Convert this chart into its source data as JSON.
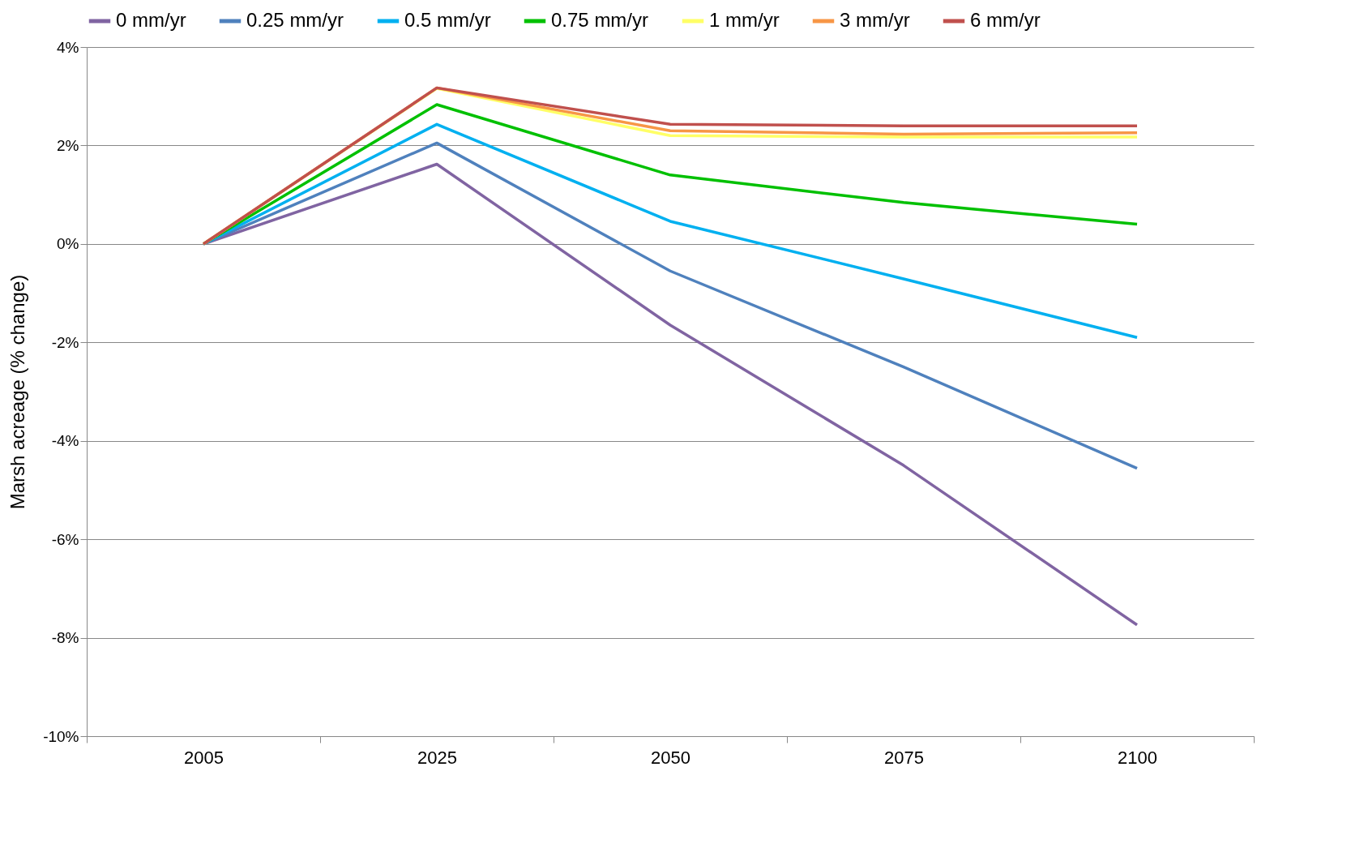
{
  "chart_data": {
    "type": "line",
    "ylabel": "Marsh acreage (% change)",
    "categories": [
      "2005",
      "2025",
      "2050",
      "2075",
      "2100"
    ],
    "series": [
      {
        "name": "0 mm/yr",
        "color": "#8064a2",
        "values": [
          0,
          1.62,
          -1.65,
          -4.5,
          -7.74
        ]
      },
      {
        "name": "0.25 mm/yr",
        "color": "#4f81bd",
        "values": [
          0,
          2.05,
          -0.55,
          -2.5,
          -4.56
        ]
      },
      {
        "name": "0.5 mm/yr",
        "color": "#00b0f0",
        "values": [
          0,
          2.43,
          0.46,
          -0.71,
          -1.9
        ]
      },
      {
        "name": "0.75 mm/yr",
        "color": "#00c000",
        "values": [
          0,
          2.83,
          1.4,
          0.84,
          0.4
        ]
      },
      {
        "name": "1 mm/yr",
        "color": "#ffff66",
        "values": [
          0,
          3.16,
          2.2,
          2.17,
          2.17
        ]
      },
      {
        "name": "3 mm/yr",
        "color": "#f79646",
        "values": [
          0,
          3.17,
          2.3,
          2.23,
          2.26
        ]
      },
      {
        "name": "6 mm/yr",
        "color": "#c0504d",
        "values": [
          0,
          3.17,
          2.43,
          2.4,
          2.4
        ]
      }
    ],
    "ylim": [
      -10,
      4
    ],
    "yticks": [
      {
        "value": -10,
        "label": "-10%"
      },
      {
        "value": -8,
        "label": "-8%"
      },
      {
        "value": -6,
        "label": "-6%"
      },
      {
        "value": -4,
        "label": "-4%"
      },
      {
        "value": -2,
        "label": "-2%"
      },
      {
        "value": 0,
        "label": "0%"
      },
      {
        "value": 2,
        "label": "2%"
      },
      {
        "value": 4,
        "label": "4%"
      }
    ],
    "grid": "y",
    "legend": "top",
    "marker": "none",
    "line_style": "solid"
  }
}
